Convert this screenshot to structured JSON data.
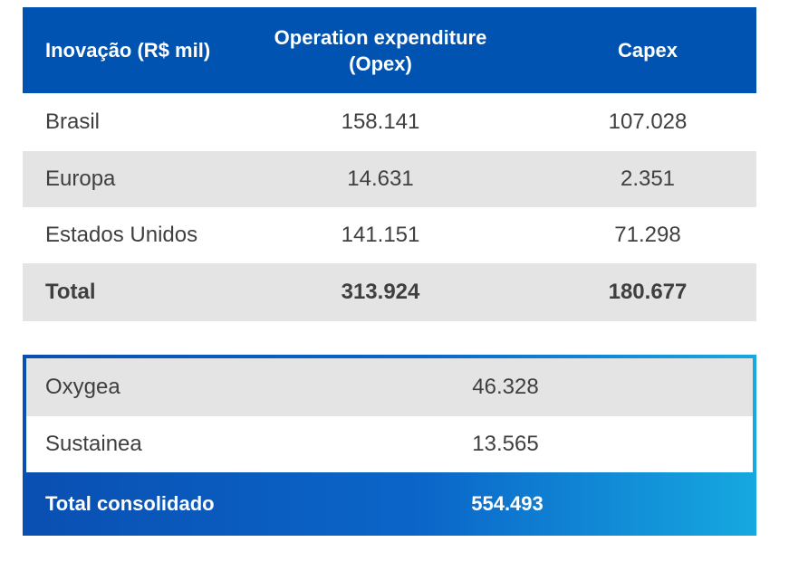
{
  "main_table": {
    "headers": [
      "Inovação (R$ mil)",
      "Operation expenditure (Opex)",
      "Capex"
    ],
    "rows": [
      [
        "Brasil",
        "158.141",
        "107.028"
      ],
      [
        "Europa",
        "14.631",
        "2.351"
      ],
      [
        "Estados Unidos",
        "141.151",
        "71.298"
      ]
    ],
    "total": [
      "Total",
      "313.924",
      "180.677"
    ]
  },
  "sub_table": {
    "rows": [
      [
        "Oxygea",
        "46.328"
      ],
      [
        "Sustainea",
        "13.565"
      ]
    ],
    "total": [
      "Total consolidado",
      "554.493"
    ]
  },
  "colors": {
    "header_blue": "#0053b0",
    "gradient_start": "#0a4fb2",
    "gradient_end": "#16a8e0",
    "row_grey": "#e4e4e4"
  }
}
